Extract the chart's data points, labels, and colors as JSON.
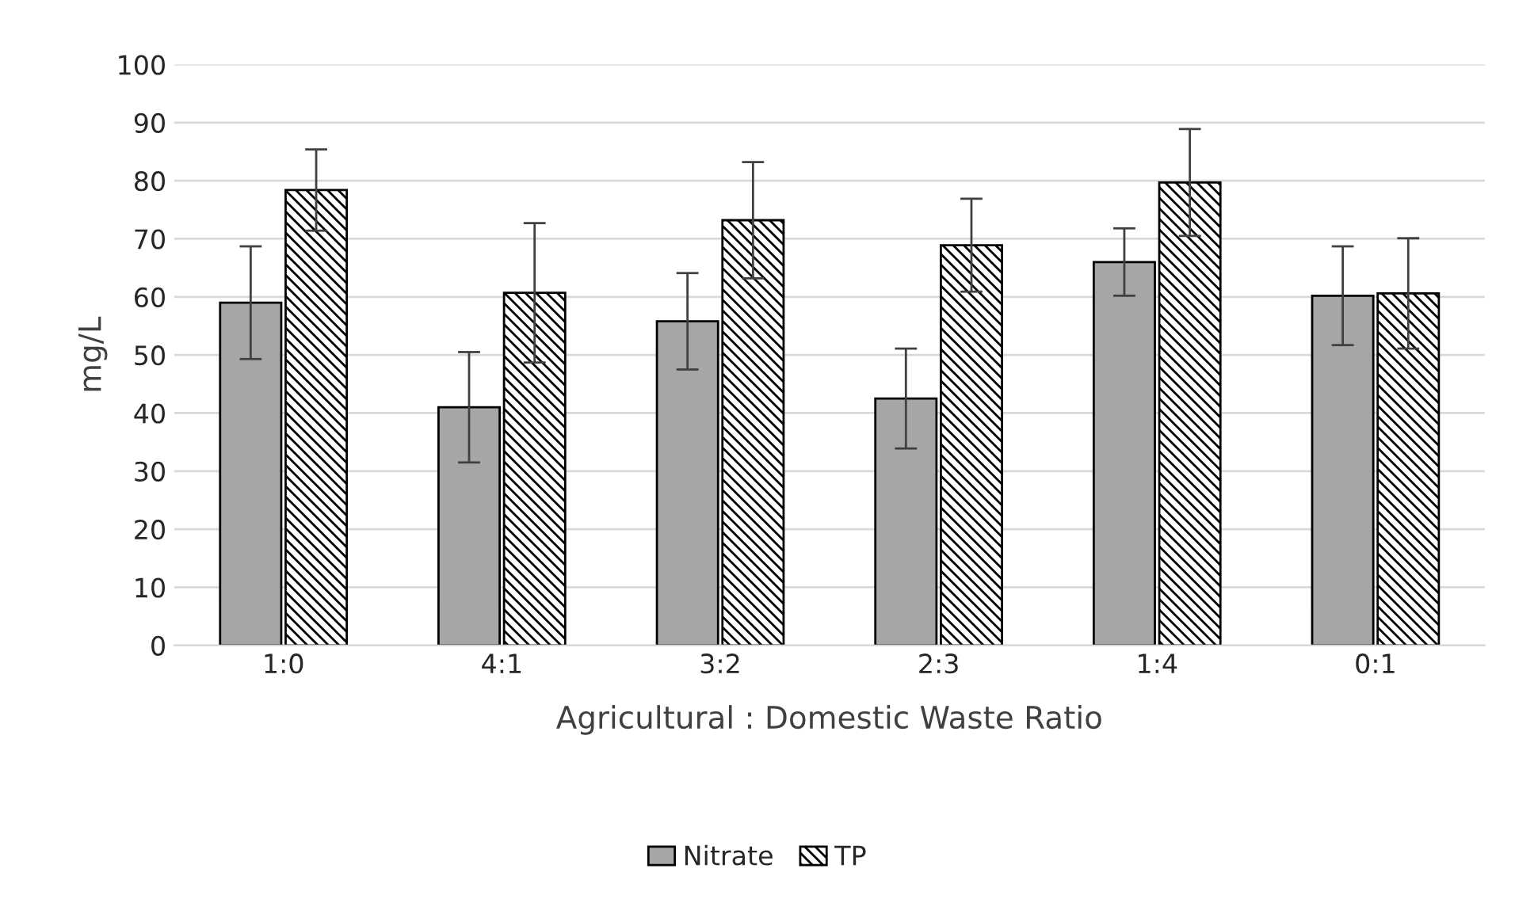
{
  "chart_data": {
    "type": "bar",
    "xlabel": "Agricultural : Domestic Waste Ratio",
    "ylabel": "mg/L",
    "categories": [
      "1:0",
      "4:1",
      "3:2",
      "2:3",
      "1:4",
      "0:1"
    ],
    "series": [
      {
        "name": "Nitrate",
        "color": "#a6a6a6",
        "values": [
          59,
          41,
          55.8,
          42.5,
          66,
          60.2
        ],
        "errors": [
          9.7,
          9.5,
          8.3,
          8.6,
          5.8,
          8.5
        ]
      },
      {
        "name": "TP",
        "color": "#000000",
        "values": [
          78.4,
          60.7,
          73.2,
          68.9,
          79.7,
          60.6
        ],
        "errors": [
          7,
          12,
          10,
          8,
          9.2,
          9.5
        ]
      }
    ],
    "ylim": [
      0,
      100
    ],
    "yticks": [
      0,
      10,
      20,
      30,
      40,
      50,
      60,
      70,
      80,
      90,
      100
    ],
    "grid": "y",
    "legend": "bottom"
  }
}
